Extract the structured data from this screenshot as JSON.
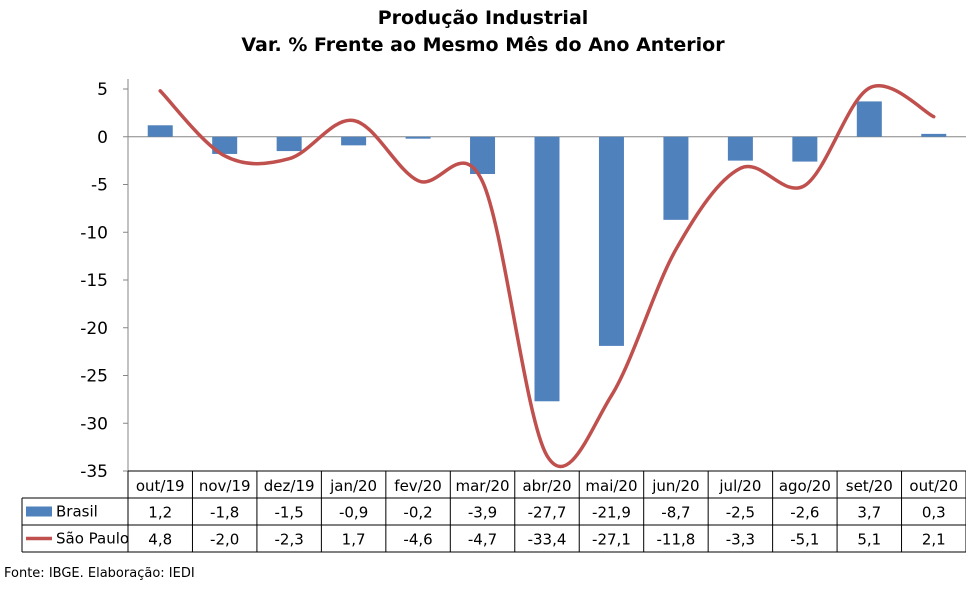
{
  "chart_data": {
    "type": "bar",
    "title": "Produção Industrial",
    "subtitle": "Var. % Frente ao Mesmo Mês do Ano Anterior",
    "categories": [
      "out/19",
      "nov/19",
      "dez/19",
      "jan/20",
      "fev/20",
      "mar/20",
      "abr/20",
      "mai/20",
      "jun/20",
      "jul/20",
      "ago/20",
      "set/20",
      "out/20"
    ],
    "series": [
      {
        "name": "Brasil",
        "kind": "bar",
        "color": "#4f81bd",
        "values": [
          1.2,
          -1.8,
          -1.5,
          -0.9,
          -0.2,
          -3.9,
          -27.7,
          -21.9,
          -8.7,
          -2.5,
          -2.6,
          3.7,
          0.3
        ],
        "labels": [
          "1,2",
          "-1,8",
          "-1,5",
          "-0,9",
          "-0,2",
          "-3,9",
          "-27,7",
          "-21,9",
          "-8,7",
          "-2,5",
          "-2,6",
          "3,7",
          "0,3"
        ]
      },
      {
        "name": "São Paulo",
        "kind": "line",
        "color": "#c0504d",
        "values": [
          4.8,
          -2.0,
          -2.3,
          1.7,
          -4.6,
          -4.7,
          -33.4,
          -27.1,
          -11.8,
          -3.3,
          -5.1,
          5.1,
          2.1
        ],
        "labels": [
          "4,8",
          "-2,0",
          "-2,3",
          "1,7",
          "-4,6",
          "-4,7",
          "-33,4",
          "-27,1",
          "-11,8",
          "-3,3",
          "-5,1",
          "5,1",
          "2,1"
        ]
      }
    ],
    "yticks": [
      "5",
      "0",
      "-5",
      "-10",
      "-15",
      "-20",
      "-25",
      "-30",
      "-35"
    ],
    "ylim": [
      -35,
      5
    ],
    "grid": false,
    "legend": "data-table"
  },
  "source": "Fonte: IBGE. Elaboração: IEDI"
}
